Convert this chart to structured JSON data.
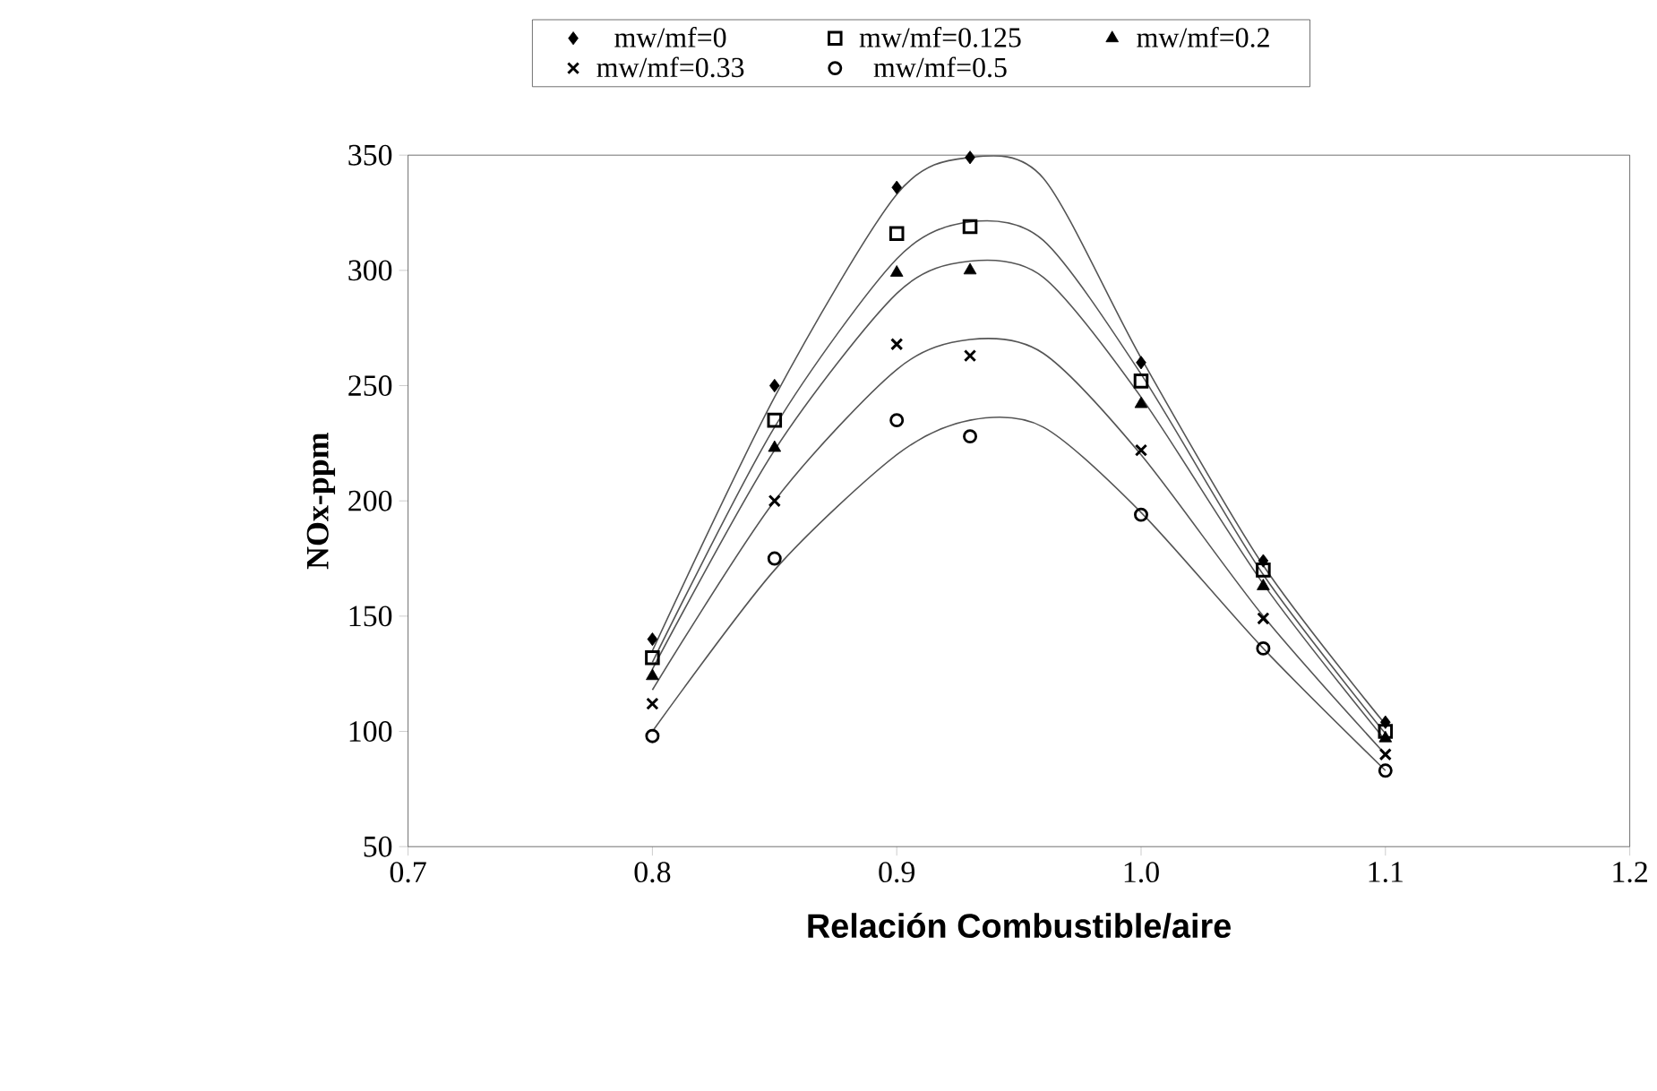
{
  "chart_data": {
    "type": "scatter",
    "xlabel": "Relación Combustible/aire",
    "ylabel": "NOx-ppm",
    "xlim": [
      0.7,
      1.2
    ],
    "xticks": [
      {
        "value": 0.7,
        "label": "0.7"
      },
      {
        "value": 0.8,
        "label": "0.8"
      },
      {
        "value": 0.9,
        "label": "0.9"
      },
      {
        "value": 1.0,
        "label": "1.0"
      },
      {
        "value": 1.1,
        "label": "1.1"
      },
      {
        "value": 1.2,
        "label": "1.2"
      }
    ],
    "ylim": [
      50,
      350
    ],
    "yticks": [
      50,
      100,
      150,
      200,
      250,
      300,
      350
    ],
    "grid": false,
    "legend": "top",
    "series": [
      {
        "name": "mw/mf=0",
        "marker": "diamond",
        "color": "#000000",
        "x": [
          0.8,
          0.85,
          0.9,
          0.93,
          1.0,
          1.05,
          1.1
        ],
        "values": [
          140,
          250,
          336,
          349,
          260,
          174,
          104
        ]
      },
      {
        "name": "mw/mf=0.125",
        "marker": "square",
        "color": "#000000",
        "x": [
          0.8,
          0.85,
          0.9,
          0.93,
          1.0,
          1.05,
          1.1
        ],
        "values": [
          132,
          235,
          316,
          319,
          252,
          170,
          100
        ]
      },
      {
        "name": "mw/mf=0.2",
        "marker": "triangle",
        "color": "#000000",
        "x": [
          0.8,
          0.85,
          0.9,
          0.93,
          1.0,
          1.05,
          1.1
        ],
        "values": [
          124,
          223,
          299,
          300,
          242,
          163,
          97
        ]
      },
      {
        "name": "mw/mf=0.33",
        "marker": "cross",
        "color": "#000000",
        "x": [
          0.8,
          0.85,
          0.9,
          0.93,
          1.0,
          1.05,
          1.1
        ],
        "values": [
          112,
          200,
          268,
          263,
          222,
          149,
          90
        ]
      },
      {
        "name": "mw/mf=0.5",
        "marker": "circle",
        "color": "#000000",
        "x": [
          0.8,
          0.85,
          0.9,
          0.93,
          1.0,
          1.05,
          1.1
        ],
        "values": [
          98,
          175,
          235,
          228,
          194,
          136,
          83
        ]
      },
      {
        "type": "line",
        "color": "#555555",
        "x": [
          0.8,
          0.85,
          0.9,
          0.93,
          0.96,
          1.0,
          1.05,
          1.1
        ],
        "values": [
          135,
          245,
          333,
          349,
          340,
          262,
          172,
          103
        ]
      },
      {
        "type": "line",
        "color": "#555555",
        "x": [
          0.8,
          0.85,
          0.9,
          0.93,
          0.96,
          1.0,
          1.05,
          1.1
        ],
        "values": [
          130,
          232,
          305,
          321,
          313,
          255,
          168,
          99
        ]
      },
      {
        "type": "line",
        "color": "#555555",
        "x": [
          0.8,
          0.85,
          0.9,
          0.93,
          0.96,
          1.0,
          1.05,
          1.1
        ],
        "values": [
          127,
          222,
          290,
          304,
          297,
          245,
          164,
          96
        ]
      },
      {
        "type": "line",
        "color": "#555555",
        "x": [
          0.8,
          0.85,
          0.9,
          0.93,
          0.96,
          1.0,
          1.05,
          1.1
        ],
        "values": [
          118,
          200,
          257,
          270,
          264,
          220,
          150,
          90
        ]
      },
      {
        "type": "line",
        "color": "#555555",
        "x": [
          0.8,
          0.85,
          0.9,
          0.93,
          0.96,
          1.0,
          1.05,
          1.1
        ],
        "values": [
          100,
          170,
          220,
          235,
          232,
          195,
          136,
          83
        ]
      }
    ]
  }
}
